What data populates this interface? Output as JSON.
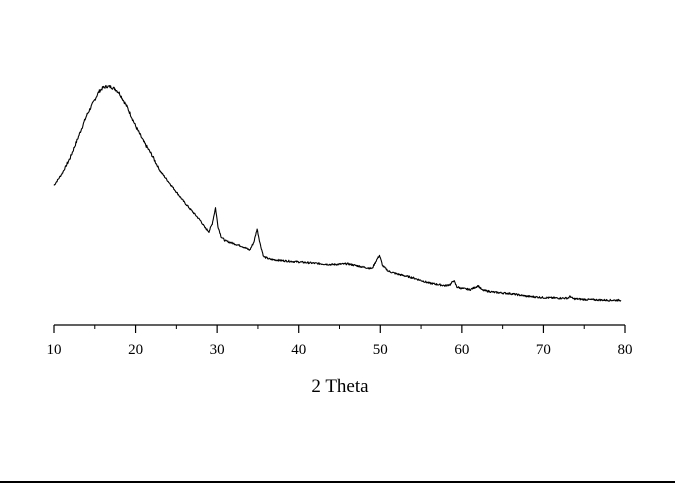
{
  "chart_data": {
    "type": "line",
    "title": "",
    "xlabel": "2 Theta",
    "ylabel": "",
    "xlim": [
      10,
      80
    ],
    "ylim": [
      0,
      100
    ],
    "x_ticks": [
      10,
      20,
      30,
      40,
      50,
      60,
      70,
      80
    ],
    "grid": false,
    "legend": "none",
    "line_color": "#000000",
    "series": [
      {
        "x": [
          10,
          11,
          12,
          13,
          14,
          15,
          15.5,
          16,
          16.5,
          17,
          17.5,
          18,
          19,
          20,
          21,
          22,
          23,
          24,
          25,
          26,
          27,
          28,
          28.5,
          29,
          29.4,
          29.8,
          30.1,
          30.5,
          31,
          32,
          33,
          34,
          34.5,
          34.9,
          35.3,
          35.7,
          36.5,
          38,
          40,
          42,
          44,
          46,
          48,
          49,
          49.5,
          49.9,
          50.3,
          51,
          52,
          54,
          56,
          58,
          58.6,
          59,
          59.4,
          60,
          61,
          61.7,
          62,
          62.5,
          64,
          66,
          68,
          70,
          72,
          73,
          73.3,
          73.6,
          75,
          78,
          79.5
        ],
        "y": [
          52.5,
          57,
          63,
          71,
          79,
          85,
          88,
          89.5,
          90,
          89.8,
          89,
          87.5,
          82,
          75,
          69,
          64,
          58,
          54,
          50,
          46,
          42.5,
          39,
          36.5,
          35,
          38,
          44,
          37,
          33,
          31.5,
          30.5,
          29.5,
          28,
          31,
          36,
          30,
          25.5,
          24.5,
          24,
          23.5,
          23,
          22.5,
          22.8,
          21.5,
          21,
          24,
          26,
          22,
          20,
          19,
          17.5,
          15.5,
          14.5,
          15,
          16.5,
          14,
          13.5,
          13,
          14,
          14.5,
          12.8,
          12,
          11.5,
          10.5,
          10,
          9.8,
          9.8,
          10.5,
          9.6,
          9.3,
          9,
          9
        ]
      }
    ]
  }
}
